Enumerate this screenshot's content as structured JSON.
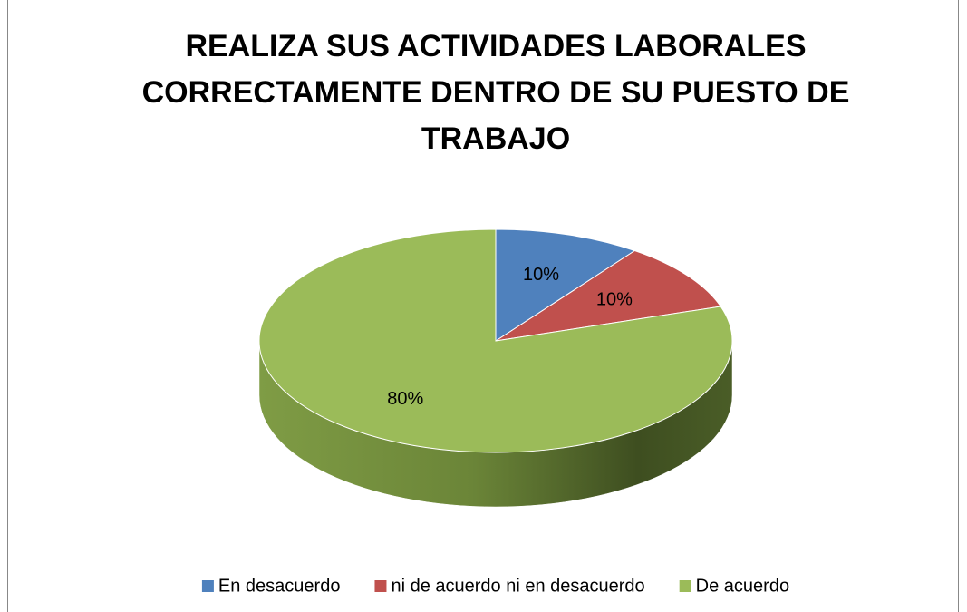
{
  "chart_data": {
    "type": "pie",
    "title": "REALIZA SUS ACTIVIDADES LABORALES CORRECTAMENTE DENTRO DE SU PUESTO DE TRABAJO",
    "categories": [
      "En desacuerdo",
      "ni de acuerdo ni en desacuerdo",
      "De acuerdo"
    ],
    "values": [
      10,
      10,
      80
    ],
    "value_labels": [
      "10%",
      "10%",
      "80%"
    ],
    "colors": [
      "#4f81bd",
      "#c0504d",
      "#9bbb59"
    ],
    "legend": "bottom"
  }
}
